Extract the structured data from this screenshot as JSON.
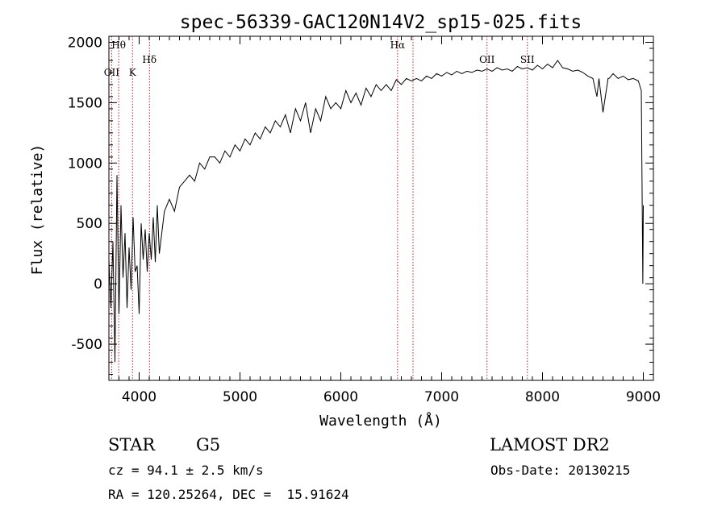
{
  "chart_data": {
    "type": "line",
    "title": "spec-56339-GAC120N14V2_sp15-025.fits",
    "xlabel": "Wavelength (Å)",
    "ylabel": "Flux (relative)",
    "xlim": [
      3700,
      9100
    ],
    "ylim": [
      -800,
      2050
    ],
    "x_ticks": [
      4000,
      5000,
      6000,
      7000,
      8000,
      9000
    ],
    "y_ticks": [
      -500,
      0,
      500,
      1000,
      1500,
      2000
    ],
    "grid": false,
    "series": [
      {
        "x": [
          3700,
          3720,
          3740,
          3760,
          3780,
          3800,
          3820,
          3840,
          3860,
          3880,
          3900,
          3920,
          3940,
          3960,
          3980,
          4000,
          4020,
          4040,
          4060,
          4080,
          4100,
          4120,
          4140,
          4160,
          4180,
          4200,
          4250,
          4300,
          4350,
          4400,
          4450,
          4500,
          4550,
          4600,
          4650,
          4700,
          4750,
          4800,
          4850,
          4900,
          4950,
          5000,
          5050,
          5100,
          5150,
          5200,
          5250,
          5300,
          5350,
          5400,
          5450,
          5500,
          5550,
          5600,
          5650,
          5700,
          5750,
          5800,
          5850,
          5900,
          5950,
          6000,
          6050,
          6100,
          6150,
          6200,
          6250,
          6300,
          6350,
          6400,
          6450,
          6500,
          6550,
          6600,
          6650,
          6700,
          6750,
          6800,
          6850,
          6900,
          6950,
          7000,
          7050,
          7100,
          7150,
          7200,
          7250,
          7300,
          7350,
          7400,
          7450,
          7500,
          7550,
          7600,
          7650,
          7700,
          7750,
          7800,
          7850,
          7900,
          7950,
          8000,
          8050,
          8100,
          8150,
          8200,
          8250,
          8300,
          8350,
          8400,
          8450,
          8500,
          8540,
          8560,
          8600,
          8650,
          8660,
          8700,
          8750,
          8800,
          8850,
          8900,
          8950,
          8980,
          8995,
          9000
        ],
        "y": [
          200,
          -200,
          350,
          -650,
          900,
          -250,
          650,
          50,
          420,
          -200,
          300,
          -50,
          550,
          100,
          150,
          -250,
          500,
          200,
          450,
          100,
          420,
          200,
          550,
          180,
          650,
          250,
          600,
          700,
          600,
          800,
          850,
          900,
          850,
          1000,
          950,
          1050,
          1050,
          1000,
          1100,
          1050,
          1150,
          1100,
          1200,
          1150,
          1250,
          1200,
          1300,
          1250,
          1350,
          1300,
          1400,
          1250,
          1450,
          1350,
          1500,
          1250,
          1450,
          1350,
          1550,
          1450,
          1500,
          1450,
          1600,
          1500,
          1580,
          1480,
          1620,
          1550,
          1650,
          1600,
          1650,
          1600,
          1690,
          1650,
          1700,
          1680,
          1700,
          1680,
          1720,
          1700,
          1740,
          1720,
          1750,
          1730,
          1760,
          1740,
          1760,
          1750,
          1770,
          1760,
          1780,
          1760,
          1790,
          1770,
          1780,
          1760,
          1800,
          1780,
          1790,
          1770,
          1810,
          1780,
          1820,
          1790,
          1850,
          1790,
          1780,
          1760,
          1770,
          1750,
          1720,
          1700,
          1550,
          1700,
          1420,
          1700,
          1700,
          1740,
          1700,
          1720,
          1690,
          1700,
          1680,
          1600,
          0,
          650
        ]
      }
    ],
    "lines": [
      {
        "label": "Hθ",
        "x": 3797,
        "level": "high"
      },
      {
        "label": "OII",
        "x": 3727,
        "level": "low"
      },
      {
        "label": "K",
        "x": 3934,
        "level": "low"
      },
      {
        "label": "Hδ",
        "x": 4102,
        "level": "mid"
      },
      {
        "label": "Hα",
        "x": 6563,
        "level": "high"
      },
      {
        "label": "",
        "x": 6716,
        "level": "none"
      },
      {
        "label": "OII",
        "x": 7450,
        "level": "mid"
      },
      {
        "label": "SII",
        "x": 7850,
        "level": "mid"
      }
    ],
    "line_color": "#000000",
    "marker_color": "#b22222"
  },
  "info": {
    "class": "STAR",
    "subclass": "G5",
    "survey": "LAMOST DR2",
    "cz": "cz = 94.1 ± 2.5 km/s",
    "obs_date": "Obs-Date: 20130215",
    "radec": "RA = 120.25264, DEC =  15.91624"
  }
}
